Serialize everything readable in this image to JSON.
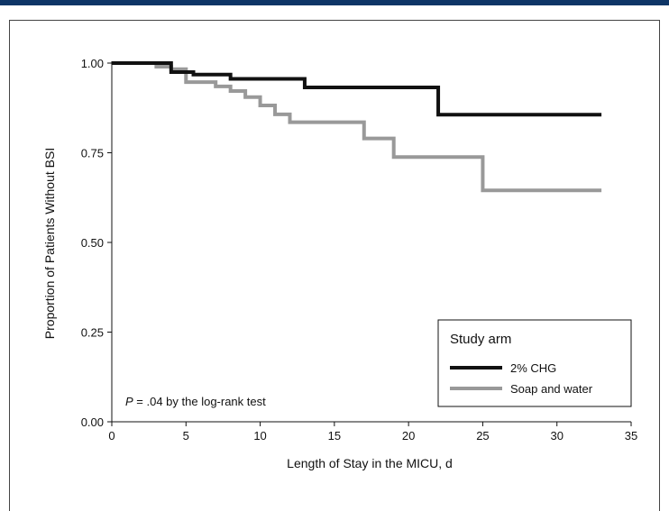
{
  "colors": {
    "top_bar": "#0e3566",
    "frame": "#444444",
    "axis": "#111111",
    "series_chg": "#111111",
    "series_soap": "#999999"
  },
  "chart_data": {
    "type": "line",
    "step": true,
    "xlabel": "Length of Stay in the MICU, d",
    "ylabel": "Proportion of Patients Without BSI",
    "xlim": [
      0,
      35
    ],
    "ylim": [
      0,
      1
    ],
    "x_ticks": [
      "0",
      "5",
      "10",
      "15",
      "20",
      "25",
      "30",
      "35"
    ],
    "y_ticks": [
      "0.00",
      "0.25",
      "0.50",
      "0.75",
      "1.00"
    ],
    "grid": false,
    "legend": {
      "title": "Study arm",
      "placement": "bottom-right"
    },
    "annotation": {
      "p_symbol": "P",
      "text": " = .04 by the log-rank test"
    },
    "series": [
      {
        "name": "2% CHG",
        "color": "#111111",
        "points": [
          [
            0,
            1.0
          ],
          [
            4,
            1.0
          ],
          [
            4,
            0.975
          ],
          [
            5.5,
            0.975
          ],
          [
            5.5,
            0.968
          ],
          [
            8,
            0.968
          ],
          [
            8,
            0.956
          ],
          [
            13,
            0.956
          ],
          [
            13,
            0.932
          ],
          [
            22,
            0.932
          ],
          [
            22,
            0.856
          ],
          [
            33,
            0.856
          ]
        ]
      },
      {
        "name": "Soap and water",
        "color": "#999999",
        "points": [
          [
            0,
            1.0
          ],
          [
            3,
            1.0
          ],
          [
            3,
            0.99
          ],
          [
            4,
            0.99
          ],
          [
            4,
            0.983
          ],
          [
            5,
            0.983
          ],
          [
            5,
            0.947
          ],
          [
            7,
            0.947
          ],
          [
            7,
            0.935
          ],
          [
            8,
            0.935
          ],
          [
            8,
            0.922
          ],
          [
            9,
            0.922
          ],
          [
            9,
            0.905
          ],
          [
            10,
            0.905
          ],
          [
            10,
            0.882
          ],
          [
            11,
            0.882
          ],
          [
            11,
            0.857
          ],
          [
            12,
            0.857
          ],
          [
            12,
            0.835
          ],
          [
            17,
            0.835
          ],
          [
            17,
            0.79
          ],
          [
            19,
            0.79
          ],
          [
            19,
            0.738
          ],
          [
            25,
            0.738
          ],
          [
            25,
            0.645
          ],
          [
            33,
            0.645
          ]
        ]
      }
    ]
  }
}
